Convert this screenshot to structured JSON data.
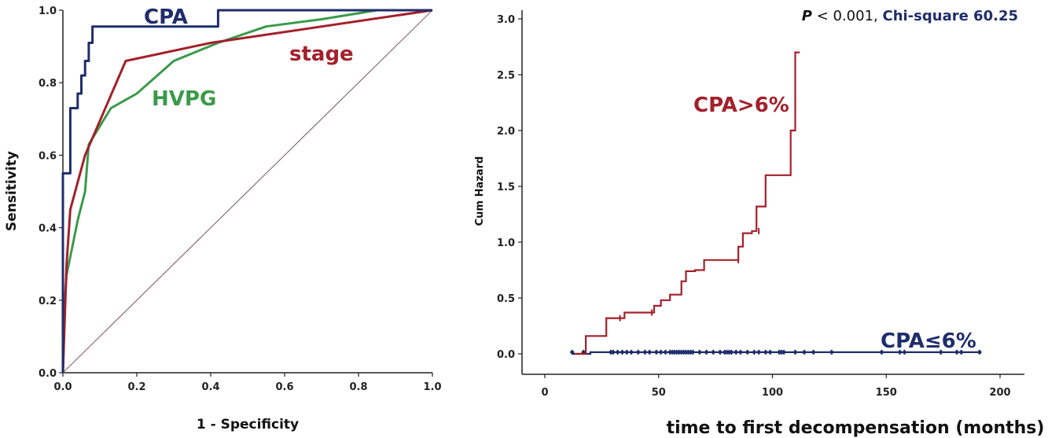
{
  "colors": {
    "cpa": "#1f2d6b",
    "stage": "#a3202a",
    "hvpg": "#3a9a4a",
    "diagonal": "#8a6a7a",
    "axis": "#222222"
  },
  "chart_data": [
    {
      "type": "line",
      "subtype": "roc",
      "xlabel": "1 - Specificity",
      "ylabel": "Sensitivity",
      "xlim": [
        0,
        1
      ],
      "ylim": [
        0,
        1
      ],
      "xticks": [
        "0.0",
        "0.2",
        "0.4",
        "0.6",
        "0.8",
        "1.0"
      ],
      "yticks": [
        "0.0",
        "0.2",
        "0.4",
        "0.6",
        "0.8",
        "1.0"
      ],
      "grid": false,
      "series": [
        {
          "name": "CPA",
          "color": "#1f2d6b",
          "x": [
            0,
            0,
            0.005,
            0.005,
            0.02,
            0.02,
            0.04,
            0.04,
            0.05,
            0.05,
            0.06,
            0.06,
            0.07,
            0.07,
            0.08,
            0.08,
            0.38,
            0.38,
            0.42,
            0.42,
            1.0
          ],
          "y": [
            0,
            0.55,
            0.55,
            0.55,
            0.55,
            0.73,
            0.73,
            0.77,
            0.77,
            0.82,
            0.82,
            0.86,
            0.86,
            0.91,
            0.91,
            0.955,
            0.955,
            0.955,
            0.955,
            1.0,
            1.0
          ]
        },
        {
          "name": "stage",
          "color": "#a3202a",
          "x": [
            0,
            0.01,
            0.02,
            0.06,
            0.17,
            0.4,
            1.0
          ],
          "y": [
            0,
            0.3,
            0.45,
            0.6,
            0.86,
            0.91,
            1.0
          ]
        },
        {
          "name": "HVPG",
          "color": "#3a9a4a",
          "x": [
            0,
            0.005,
            0.01,
            0.02,
            0.03,
            0.04,
            0.05,
            0.06,
            0.07,
            0.1,
            0.13,
            0.2,
            0.3,
            0.42,
            0.55,
            0.7,
            0.85,
            1.0
          ],
          "y": [
            0,
            0.2,
            0.27,
            0.32,
            0.37,
            0.42,
            0.46,
            0.5,
            0.63,
            0.68,
            0.73,
            0.77,
            0.86,
            0.91,
            0.955,
            0.975,
            1.0,
            1.0
          ]
        },
        {
          "name": "",
          "color": "#8a6a7a",
          "x": [
            0,
            1
          ],
          "y": [
            0,
            1
          ]
        }
      ],
      "annotations": [
        {
          "text": "CPA",
          "color": "#1f2d6b"
        },
        {
          "text": "stage",
          "color": "#a3202a"
        },
        {
          "text": "HVPG",
          "color": "#3a9a4a"
        }
      ]
    },
    {
      "type": "line",
      "subtype": "step",
      "xlabel": "time to first decompensation (months)",
      "ylabel": "Cum Hazard",
      "xlim": [
        -10,
        210
      ],
      "ylim": [
        -0.1,
        3.1
      ],
      "xticks": [
        "0",
        "50",
        "100",
        "150",
        "200"
      ],
      "yticks": [
        "0.0",
        "0.5",
        "1.0",
        "1.5",
        "2.0",
        "2.5",
        "3.0"
      ],
      "grid": false,
      "stat_p_label": "P",
      "stat_p_rest": " < 0.001, ",
      "stat_chi": "Chi-square 60.25",
      "series": [
        {
          "name": "CPA>6%",
          "color": "#a3202a",
          "x": [
            13,
            18,
            18,
            27,
            27,
            35,
            35,
            48,
            48,
            51,
            51,
            55,
            55,
            60,
            60,
            62,
            62,
            66,
            66,
            70,
            70,
            85,
            85,
            87,
            87,
            91,
            91,
            93,
            93,
            97,
            97,
            104,
            104,
            108,
            108,
            110,
            110,
            112,
            112
          ],
          "y": [
            0,
            0,
            0.16,
            0.16,
            0.32,
            0.32,
            0.37,
            0.37,
            0.43,
            0.43,
            0.48,
            0.48,
            0.53,
            0.53,
            0.65,
            0.65,
            0.74,
            0.74,
            0.75,
            0.75,
            0.84,
            0.84,
            0.96,
            0.96,
            1.08,
            1.08,
            1.1,
            1.1,
            1.32,
            1.32,
            1.6,
            1.6,
            1.6,
            1.6,
            2.0,
            2.0,
            2.7,
            2.7,
            2.7
          ],
          "censored_x": [
            33,
            47,
            85,
            94
          ],
          "censored_y": [
            0.32,
            0.37,
            0.84,
            1.1
          ]
        },
        {
          "name": "CPA≤6%",
          "color": "#1f2d6b",
          "x": [
            12,
            20,
            20,
            191
          ],
          "y": [
            0,
            0,
            0.015,
            0.015
          ],
          "censored_x": [
            12,
            17,
            29,
            30,
            32,
            34,
            36,
            38,
            41,
            44,
            46,
            49,
            51,
            53,
            55,
            56,
            57,
            58,
            59,
            60,
            61,
            62,
            63,
            64,
            65,
            68,
            71,
            74,
            77,
            79,
            80,
            81,
            82,
            84,
            86,
            89,
            92,
            94,
            97,
            99,
            103,
            104,
            105,
            110,
            114,
            118,
            126,
            148,
            156,
            158,
            174,
            181,
            183,
            191
          ],
          "censored_y_all": 0.015
        }
      ],
      "annotations": [
        {
          "text": "CPA>6%",
          "color": "#a3202a"
        },
        {
          "text": "CPA≤6%",
          "color": "#1f2d6b"
        }
      ]
    }
  ]
}
